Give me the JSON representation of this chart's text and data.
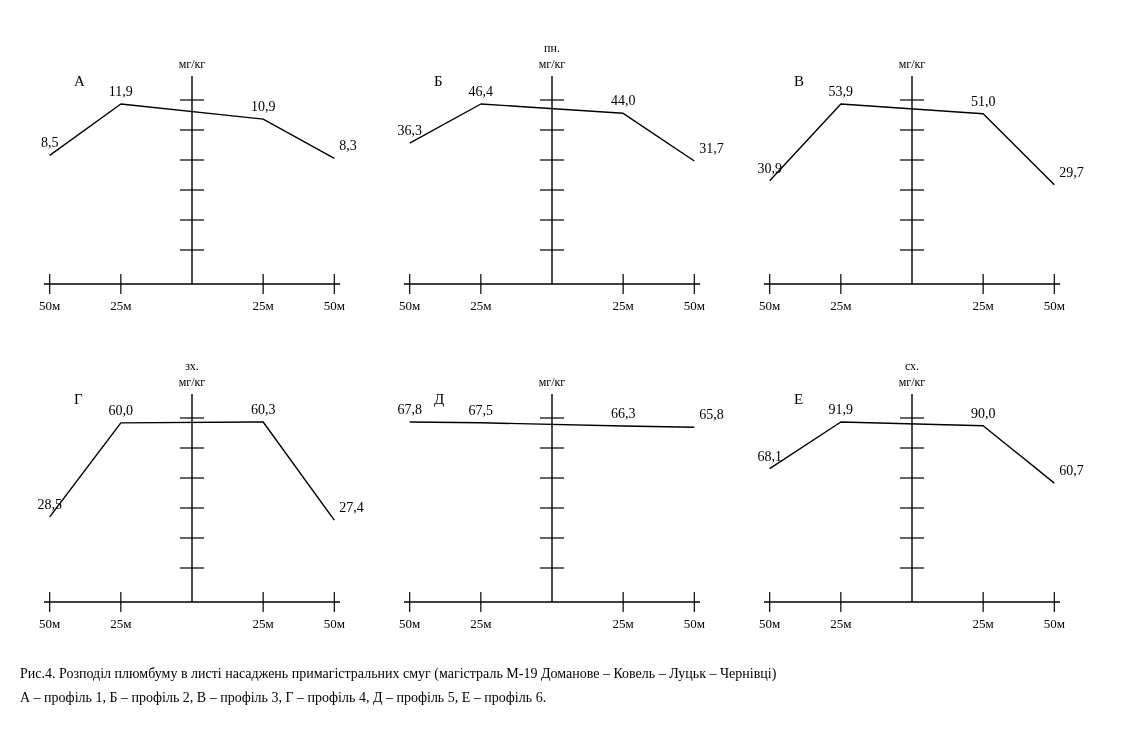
{
  "chart_data": [
    {
      "type": "line",
      "title": "А",
      "ylabel": "мг/кг",
      "x": [
        -50,
        -25,
        25,
        50
      ],
      "values": [
        8.5,
        11.9,
        10.9,
        8.3
      ],
      "value_labels": [
        "8,5",
        "11,9",
        "10,9",
        "8,3"
      ],
      "color": "#000000",
      "xlim": [
        -52,
        52
      ],
      "xticks": [
        {
          "value": -50,
          "label": "50м"
        },
        {
          "value": -25,
          "label": "25м"
        },
        {
          "value": 25,
          "label": "25м"
        },
        {
          "value": 50,
          "label": "50м"
        }
      ]
    },
    {
      "type": "line",
      "title": "Б",
      "ylabel": "мг/кг",
      "annotations": [
        "пн."
      ],
      "x": [
        -50,
        -25,
        25,
        50
      ],
      "values": [
        36.3,
        46.4,
        44.0,
        31.7
      ],
      "value_labels": [
        "36,3",
        "46,4",
        "44,0",
        "31,7"
      ],
      "color": "#000000",
      "xlim": [
        -52,
        52
      ],
      "xticks": [
        {
          "value": -50,
          "label": "50м"
        },
        {
          "value": -25,
          "label": "25м"
        },
        {
          "value": 25,
          "label": "25м"
        },
        {
          "value": 50,
          "label": "50м"
        }
      ]
    },
    {
      "type": "line",
      "title": "В",
      "ylabel": "мг/кг",
      "x": [
        -50,
        -25,
        25,
        50
      ],
      "values": [
        30.9,
        53.9,
        51.0,
        29.7
      ],
      "value_labels": [
        "30,9",
        "53,9",
        "51,0",
        "29,7"
      ],
      "color": "#000000",
      "xlim": [
        -52,
        52
      ],
      "xticks": [
        {
          "value": -50,
          "label": "50м"
        },
        {
          "value": -25,
          "label": "25м"
        },
        {
          "value": 25,
          "label": "25м"
        },
        {
          "value": 50,
          "label": "50м"
        }
      ]
    },
    {
      "type": "line",
      "title": "Г",
      "ylabel": "мг/кг",
      "annotations": [
        "зх."
      ],
      "x": [
        -50,
        -25,
        25,
        50
      ],
      "values": [
        28.5,
        60.0,
        60.3,
        27.4
      ],
      "value_labels": [
        "28,5",
        "60,0",
        "60,3",
        "27,4"
      ],
      "color": "#000000",
      "xlim": [
        -52,
        52
      ],
      "xticks": [
        {
          "value": -50,
          "label": "50м"
        },
        {
          "value": -25,
          "label": "25м"
        },
        {
          "value": 25,
          "label": "25м"
        },
        {
          "value": 50,
          "label": "50м"
        }
      ]
    },
    {
      "type": "line",
      "title": "Д",
      "ylabel": "мг/кг",
      "x": [
        -50,
        -25,
        25,
        50
      ],
      "values": [
        67.8,
        67.5,
        66.3,
        65.8
      ],
      "value_labels": [
        "67,8",
        "67,5",
        "66,3",
        "65,8"
      ],
      "color": "#000000",
      "xlim": [
        -52,
        52
      ],
      "xticks": [
        {
          "value": -50,
          "label": "50м"
        },
        {
          "value": -25,
          "label": "25м"
        },
        {
          "value": 25,
          "label": "25м"
        },
        {
          "value": 50,
          "label": "50м"
        }
      ]
    },
    {
      "type": "line",
      "title": "Е",
      "ylabel": "мг/кг",
      "annotations": [
        "сх."
      ],
      "x": [
        -50,
        -25,
        25,
        50
      ],
      "values": [
        68.1,
        91.9,
        90.0,
        60.7
      ],
      "value_labels": [
        "68,1",
        "91,9",
        "90,0",
        "60,7"
      ],
      "color": "#000000",
      "xlim": [
        -52,
        52
      ],
      "xticks": [
        {
          "value": -50,
          "label": "50м"
        },
        {
          "value": -25,
          "label": "25м"
        },
        {
          "value": 25,
          "label": "25м"
        },
        {
          "value": 50,
          "label": "50м"
        }
      ]
    },
    {
      "type": "other",
      "annotations": [
        "Рис.4. Розподіл плюмбуму в листі насаджень примагістральних смуг (магістраль М-19 Доманове – Ковель – Луцьк – Чернівці)",
        "А – профіль 1, Б – профіль 2, В – профіль 3,    Г – профіль 4, Д – профіль 5, Е – профіль 6."
      ]
    }
  ]
}
